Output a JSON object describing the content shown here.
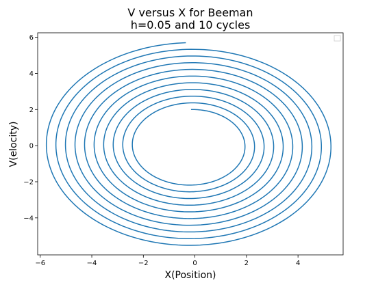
{
  "chart_data": {
    "type": "line",
    "title_line1": "V versus X for Beeman",
    "title_line2": "h=0.05 and 10 cycles",
    "xlabel": "X(Position)",
    "ylabel": "V(elocity)",
    "xlim": [
      -6.1,
      5.75
    ],
    "ylim": [
      -6.05,
      6.25
    ],
    "xticks": [
      -6,
      -4,
      -2,
      0,
      2,
      4
    ],
    "xtick_labels": [
      "−6",
      "−4",
      "−2",
      "0",
      "2",
      "4"
    ],
    "yticks": [
      -4,
      -2,
      0,
      2,
      4,
      6
    ],
    "ytick_labels": [
      "−4",
      "−2",
      "0",
      "2",
      "4",
      "6"
    ],
    "grid": false,
    "legend": "top-right (empty)",
    "series": [
      {
        "color": "#1f77b4",
        "spiral": {
          "start": [
            0,
            2.0
          ],
          "end": [
            -0.35,
            5.7
          ],
          "cycles": 10,
          "direction": "clockwise",
          "center_x": -0.15
        }
      }
    ]
  }
}
